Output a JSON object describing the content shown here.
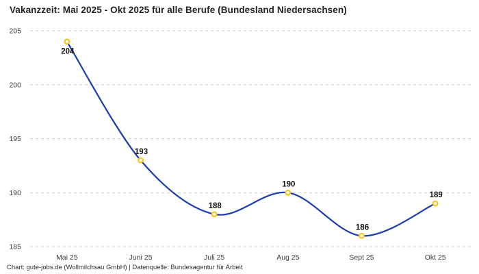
{
  "title": "Vakanzzeit: Mai 2025 - Okt 2025 für alle Berufe (Bundesland Niedersachsen)",
  "footer": "Chart: gute-jobs.de (Wollmilchsau GmbH) | Datenquelle: Bundesagentur für Arbeit",
  "chart_data": {
    "type": "line",
    "title": "Vakanzzeit: Mai 2025 - Okt 2025 für alle Berufe (Bundesland Niedersachsen)",
    "categories": [
      "Mai 25",
      "Juni 25",
      "Juli 25",
      "Aug 25",
      "Sept 25",
      "Okt 25"
    ],
    "values": [
      204,
      193,
      188,
      190,
      186,
      189
    ],
    "xlabel": "",
    "ylabel": "",
    "ylim": [
      185,
      205
    ],
    "yticks": [
      205,
      200,
      195,
      190,
      185
    ],
    "grid": "horizontal-dashed",
    "legend": "none",
    "interpolation": "spline",
    "label_positions": [
      "below",
      "above",
      "above",
      "above",
      "above",
      "above"
    ],
    "colors": {
      "line": "#1f3fae",
      "marker_ring": "#fcc419",
      "marker_fill": "#ffffff",
      "grid": "#cbcbcb",
      "axis_text": "#3d3d3d",
      "data_label_text": "#111111",
      "title_text": "#222222",
      "footer_text": "#2e2e2e",
      "background": "#ffffff"
    }
  }
}
